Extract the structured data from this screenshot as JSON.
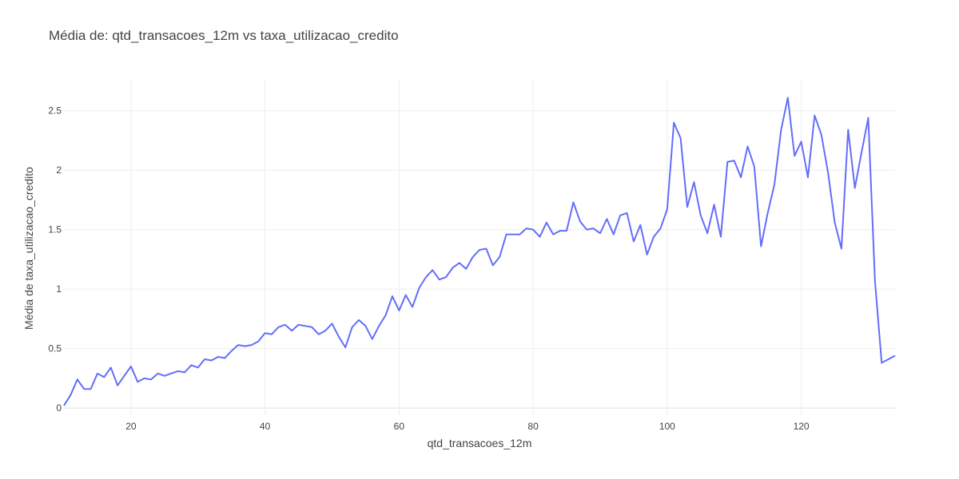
{
  "chart_data": {
    "type": "line",
    "title": "Média de: qtd_transacoes_12m vs taxa_utilizacao_credito",
    "xlabel": "qtd_transacoes_12m",
    "ylabel": "Média de taxa_utilizacao_credito",
    "xlim": [
      10,
      134
    ],
    "ylim": [
      -0.06,
      2.76
    ],
    "x_ticks": [
      20,
      40,
      60,
      80,
      100,
      120
    ],
    "y_ticks": [
      0,
      0.5,
      1,
      1.5,
      2,
      2.5
    ],
    "x_tick_labels": [
      "20",
      "40",
      "60",
      "80",
      "100",
      "120"
    ],
    "y_tick_labels": [
      "0",
      "0.5",
      "1",
      "1.5",
      "2",
      "2.5"
    ],
    "grid": true,
    "colors": {
      "line": "#636efa",
      "grid": "#eeeeee",
      "text": "#444444"
    },
    "series": [
      {
        "x": [
          10,
          11,
          12,
          13,
          14,
          15,
          16,
          17,
          18,
          19,
          20,
          21,
          22,
          23,
          24,
          25,
          26,
          27,
          28,
          29,
          30,
          31,
          32,
          33,
          34,
          35,
          36,
          37,
          38,
          39,
          40,
          41,
          42,
          43,
          44,
          45,
          46,
          47,
          48,
          49,
          50,
          51,
          52,
          53,
          54,
          55,
          56,
          57,
          58,
          59,
          60,
          61,
          62,
          63,
          64,
          65,
          66,
          67,
          68,
          69,
          70,
          71,
          72,
          73,
          74,
          75,
          76,
          77,
          78,
          79,
          80,
          81,
          82,
          83,
          84,
          85,
          86,
          87,
          88,
          89,
          90,
          91,
          92,
          93,
          94,
          95,
          96,
          97,
          98,
          99,
          100,
          101,
          102,
          103,
          104,
          105,
          106,
          107,
          108,
          109,
          110,
          111,
          112,
          113,
          114,
          115,
          116,
          117,
          118,
          119,
          120,
          121,
          122,
          123,
          124,
          125,
          126,
          127,
          128,
          129,
          130,
          131,
          132,
          133,
          134
        ],
        "y": [
          0.02,
          0.11,
          0.24,
          0.16,
          0.16,
          0.29,
          0.26,
          0.34,
          0.19,
          0.27,
          0.35,
          0.22,
          0.25,
          0.24,
          0.29,
          0.27,
          0.29,
          0.31,
          0.3,
          0.36,
          0.34,
          0.41,
          0.4,
          0.43,
          0.42,
          0.48,
          0.53,
          0.52,
          0.53,
          0.56,
          0.63,
          0.62,
          0.68,
          0.7,
          0.65,
          0.7,
          0.69,
          0.68,
          0.62,
          0.65,
          0.71,
          0.6,
          0.51,
          0.68,
          0.74,
          0.69,
          0.58,
          0.69,
          0.78,
          0.94,
          0.82,
          0.95,
          0.85,
          1.01,
          1.1,
          1.16,
          1.08,
          1.1,
          1.18,
          1.22,
          1.17,
          1.27,
          1.33,
          1.34,
          1.2,
          1.27,
          1.46,
          1.46,
          1.46,
          1.51,
          1.5,
          1.44,
          1.56,
          1.46,
          1.49,
          1.49,
          1.73,
          1.57,
          1.5,
          1.51,
          1.47,
          1.59,
          1.46,
          1.62,
          1.64,
          1.4,
          1.54,
          1.29,
          1.44,
          1.51,
          1.67,
          2.4,
          2.27,
          1.69,
          1.9,
          1.62,
          1.47,
          1.71,
          1.44,
          2.07,
          2.08,
          1.94,
          2.2,
          2.03,
          1.36,
          1.64,
          1.88,
          2.34,
          2.61,
          2.12,
          2.24,
          1.94,
          2.46,
          2.3,
          1.98,
          1.56,
          1.34,
          2.34,
          1.85,
          2.15,
          2.44,
          1.07,
          0.38,
          0.41,
          0.44
        ]
      }
    ]
  }
}
